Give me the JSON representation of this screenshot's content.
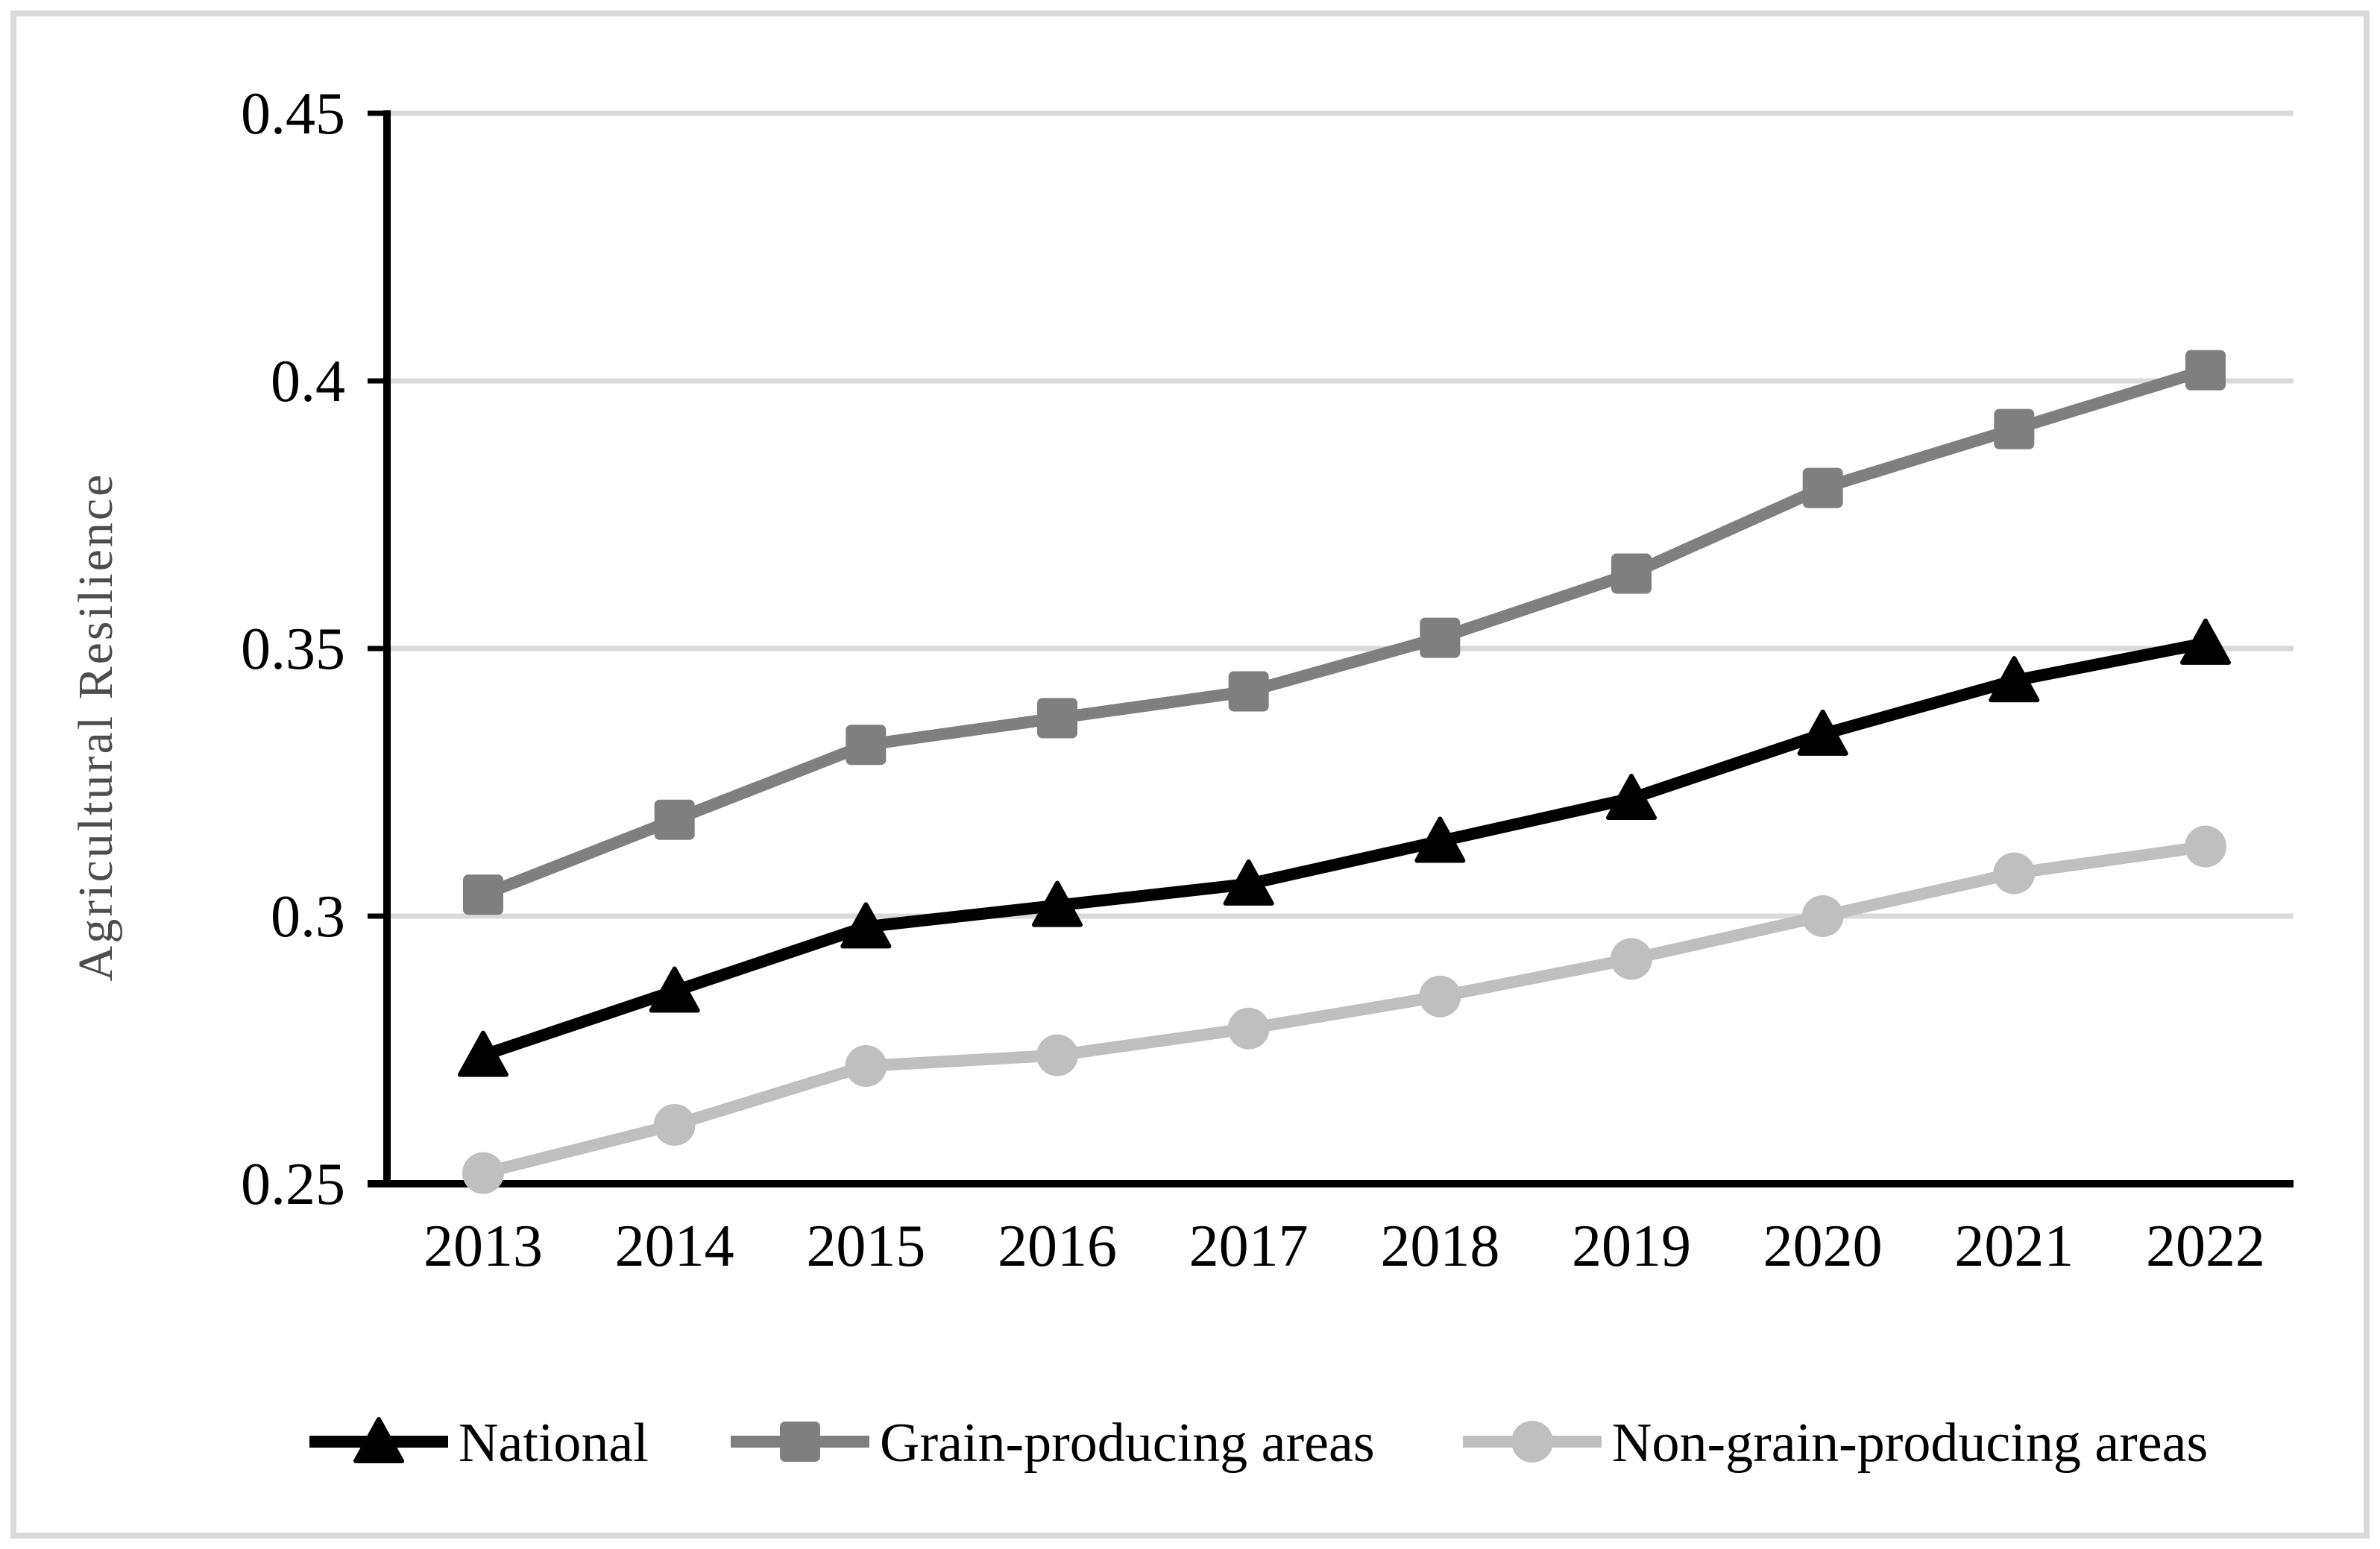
{
  "chart_data": {
    "type": "line",
    "title": "",
    "xlabel": "",
    "ylabel": "Agricultural Resilience",
    "categories": [
      "2013",
      "2014",
      "2015",
      "2016",
      "2017",
      "2018",
      "2019",
      "2020",
      "2021",
      "2022"
    ],
    "series": [
      {
        "name": "National",
        "marker": "triangle",
        "color": "#000000",
        "values": [
          0.274,
          0.286,
          0.298,
          0.302,
          0.306,
          0.314,
          0.322,
          0.334,
          0.344,
          0.351
        ]
      },
      {
        "name": "Grain-producing areas",
        "marker": "square",
        "color": "#7f7f7f",
        "values": [
          0.304,
          0.318,
          0.332,
          0.337,
          0.342,
          0.352,
          0.364,
          0.38,
          0.391,
          0.402
        ]
      },
      {
        "name": "Non-grain-producing areas",
        "marker": "circle",
        "color": "#bfbfbf",
        "values": [
          0.252,
          0.261,
          0.272,
          0.274,
          0.279,
          0.285,
          0.292,
          0.3,
          0.308,
          0.313
        ]
      }
    ],
    "ylim": [
      0.25,
      0.45
    ],
    "y_ticks": [
      0.25,
      0.3,
      0.35,
      0.4,
      0.45
    ],
    "y_tick_labels": [
      "0.25",
      "0.3",
      "0.35",
      "0.4",
      "0.45"
    ],
    "grid": "horizontal",
    "gridline_color": "#d9d9d9",
    "axis_color": "#000000",
    "tick_label_color": "#000000",
    "axis_title_color": "#4d4d4d",
    "legend_position": "bottom",
    "page_border_color": "#d9d9d9"
  }
}
